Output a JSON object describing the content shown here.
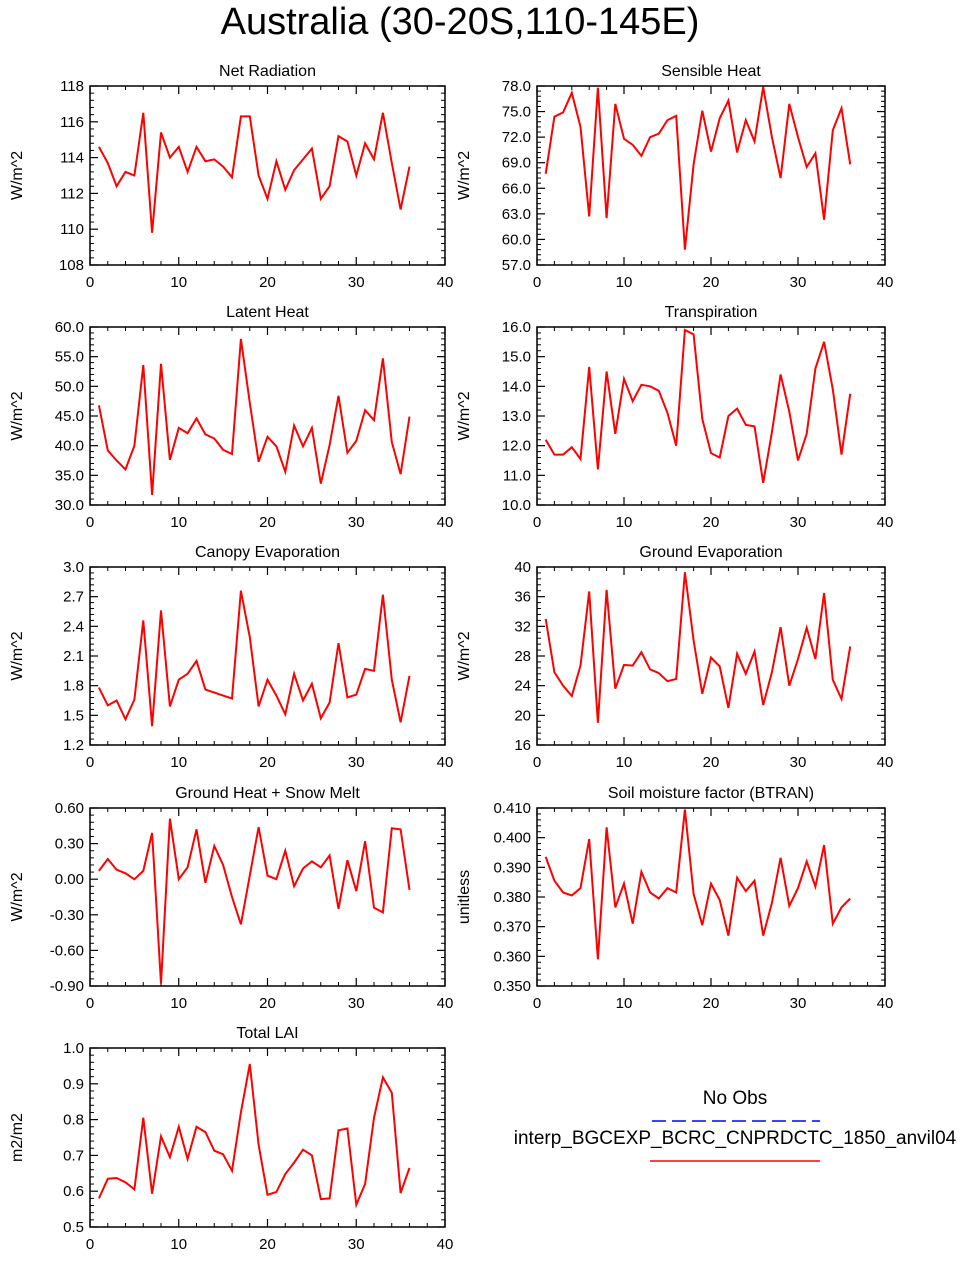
{
  "page": {
    "title": "Australia (30-20S,110-145E)"
  },
  "legend": {
    "obs_label": "No Obs",
    "obs_color": "#0000ff",
    "model_label": "interp_BGCEXP_BCRC_CNPRDCTC_1850_anvil04",
    "model_color": "#ff0000"
  },
  "chart_data": [
    {
      "type": "line",
      "title": "Net Radiation",
      "ylabel": "W/m^2",
      "xlim": [
        0,
        40
      ],
      "ylim": [
        108,
        118
      ],
      "xticks": [
        0,
        10,
        20,
        30,
        40
      ],
      "yticklabels": [
        "108",
        "110",
        "112",
        "114",
        "116",
        "118"
      ],
      "x": [
        1,
        2,
        3,
        4,
        5,
        6,
        7,
        8,
        9,
        10,
        11,
        12,
        13,
        14,
        15,
        16,
        17,
        18,
        19,
        20,
        21,
        22,
        23,
        24,
        25,
        26,
        27,
        28,
        29,
        30,
        31,
        32,
        33,
        34,
        35,
        36
      ],
      "series": [
        {
          "values": [
            114.6,
            113.7,
            112.4,
            113.2,
            113.0,
            116.5,
            109.8,
            115.4,
            114.0,
            114.6,
            113.2,
            114.6,
            113.8,
            113.9,
            113.5,
            112.9,
            116.3,
            116.3,
            113.0,
            111.7,
            113.8,
            112.2,
            113.3,
            113.9,
            114.5,
            111.7,
            112.4,
            115.2,
            114.9,
            113.0,
            114.8,
            113.9,
            116.5,
            113.7,
            111.1,
            113.5
          ]
        }
      ]
    },
    {
      "type": "line",
      "title": "Sensible Heat",
      "ylabel": "W/m^2",
      "xlim": [
        0,
        40
      ],
      "ylim": [
        57,
        78
      ],
      "xticks": [
        0,
        10,
        20,
        30,
        40
      ],
      "yticklabels": [
        "57.0",
        "60.0",
        "63.0",
        "66.0",
        "69.0",
        "72.0",
        "75.0",
        "78.0"
      ],
      "x": [
        1,
        2,
        3,
        4,
        5,
        6,
        7,
        8,
        9,
        10,
        11,
        12,
        13,
        14,
        15,
        16,
        17,
        18,
        19,
        20,
        21,
        22,
        23,
        24,
        25,
        26,
        27,
        28,
        29,
        30,
        31,
        32,
        33,
        34,
        35,
        36
      ],
      "series": [
        {
          "values": [
            67.7,
            74.4,
            74.9,
            77.2,
            73.2,
            62.7,
            77.8,
            62.5,
            75.9,
            71.8,
            71.1,
            69.8,
            72.0,
            72.4,
            74.0,
            74.5,
            58.8,
            68.8,
            75.1,
            70.3,
            74.2,
            76.3,
            70.2,
            74.0,
            71.5,
            77.9,
            72.0,
            67.2,
            75.9,
            72.0,
            68.5,
            70.1,
            62.3,
            72.8,
            75.4,
            68.8
          ]
        }
      ]
    },
    {
      "type": "line",
      "title": "Latent Heat",
      "ylabel": "W/m^2",
      "xlim": [
        0,
        40
      ],
      "ylim": [
        30,
        60
      ],
      "xticks": [
        0,
        10,
        20,
        30,
        40
      ],
      "yticklabels": [
        "30.0",
        "35.0",
        "40.0",
        "45.0",
        "50.0",
        "55.0",
        "60.0"
      ],
      "x": [
        1,
        2,
        3,
        4,
        5,
        6,
        7,
        8,
        9,
        10,
        11,
        12,
        13,
        14,
        15,
        16,
        17,
        18,
        19,
        20,
        21,
        22,
        23,
        24,
        25,
        26,
        27,
        28,
        29,
        30,
        31,
        32,
        33,
        34,
        35,
        36
      ],
      "series": [
        {
          "values": [
            46.8,
            39.2,
            37.5,
            36.0,
            40.0,
            53.6,
            31.7,
            53.8,
            37.6,
            43.0,
            42.1,
            44.6,
            41.9,
            41.2,
            39.3,
            38.6,
            58.0,
            47.2,
            37.3,
            41.5,
            39.9,
            35.6,
            43.4,
            39.9,
            43.0,
            33.6,
            40.1,
            48.4,
            38.8,
            40.8,
            46.0,
            44.3,
            54.7,
            40.6,
            35.2,
            44.9
          ]
        }
      ]
    },
    {
      "type": "line",
      "title": "Transpiration",
      "ylabel": "W/m^2",
      "xlim": [
        0,
        40
      ],
      "ylim": [
        10,
        16
      ],
      "xticks": [
        0,
        10,
        20,
        30,
        40
      ],
      "yticklabels": [
        "10.0",
        "11.0",
        "12.0",
        "13.0",
        "14.0",
        "15.0",
        "16.0"
      ],
      "x": [
        1,
        2,
        3,
        4,
        5,
        6,
        7,
        8,
        9,
        10,
        11,
        12,
        13,
        14,
        15,
        16,
        17,
        18,
        19,
        20,
        21,
        22,
        23,
        24,
        25,
        26,
        27,
        28,
        29,
        30,
        31,
        32,
        33,
        34,
        35,
        36
      ],
      "series": [
        {
          "values": [
            12.2,
            11.7,
            11.7,
            11.95,
            11.55,
            14.65,
            11.2,
            14.5,
            12.4,
            14.25,
            13.5,
            14.05,
            14.0,
            13.85,
            13.1,
            12.0,
            15.9,
            15.75,
            12.9,
            11.75,
            11.6,
            13.0,
            13.25,
            12.7,
            12.65,
            10.75,
            12.45,
            14.4,
            13.15,
            11.5,
            12.4,
            14.6,
            15.5,
            13.9,
            11.7,
            13.75
          ]
        }
      ]
    },
    {
      "type": "line",
      "title": "Canopy Evaporation",
      "ylabel": "W/m^2",
      "xlim": [
        0,
        40
      ],
      "ylim": [
        1.2,
        3.0
      ],
      "xticks": [
        0,
        10,
        20,
        30,
        40
      ],
      "yticklabels": [
        "1.2",
        "1.5",
        "1.8",
        "2.1",
        "2.4",
        "2.7",
        "3.0"
      ],
      "x": [
        1,
        2,
        3,
        4,
        5,
        6,
        7,
        8,
        9,
        10,
        11,
        12,
        13,
        14,
        15,
        16,
        17,
        18,
        19,
        20,
        21,
        22,
        23,
        24,
        25,
        26,
        27,
        28,
        29,
        30,
        31,
        32,
        33,
        34,
        35,
        36
      ],
      "series": [
        {
          "values": [
            1.78,
            1.6,
            1.65,
            1.46,
            1.66,
            2.46,
            1.39,
            2.56,
            1.59,
            1.86,
            1.92,
            2.05,
            1.76,
            1.73,
            1.7,
            1.67,
            2.76,
            2.29,
            1.59,
            1.86,
            1.7,
            1.51,
            1.92,
            1.65,
            1.82,
            1.47,
            1.63,
            2.23,
            1.68,
            1.71,
            1.97,
            1.95,
            2.72,
            1.86,
            1.43,
            1.9
          ]
        }
      ]
    },
    {
      "type": "line",
      "title": "Ground Evaporation",
      "ylabel": "W/m^2",
      "xlim": [
        0,
        40
      ],
      "ylim": [
        16,
        40
      ],
      "xticks": [
        0,
        10,
        20,
        30,
        40
      ],
      "yticklabels": [
        "16",
        "20",
        "24",
        "28",
        "32",
        "36",
        "40"
      ],
      "x": [
        1,
        2,
        3,
        4,
        5,
        6,
        7,
        8,
        9,
        10,
        11,
        12,
        13,
        14,
        15,
        16,
        17,
        18,
        19,
        20,
        21,
        22,
        23,
        24,
        25,
        26,
        27,
        28,
        29,
        30,
        31,
        32,
        33,
        34,
        35,
        36
      ],
      "series": [
        {
          "values": [
            33.0,
            25.8,
            24.0,
            22.6,
            26.7,
            36.7,
            19.0,
            36.9,
            23.6,
            26.8,
            26.7,
            28.5,
            26.2,
            25.7,
            24.6,
            24.9,
            39.3,
            30.1,
            22.9,
            27.8,
            26.6,
            21.0,
            28.3,
            25.6,
            28.6,
            21.4,
            25.8,
            31.9,
            24.0,
            27.6,
            31.8,
            27.6,
            36.5,
            24.8,
            22.2,
            29.3
          ]
        }
      ]
    },
    {
      "type": "line",
      "title": "Ground Heat + Snow Melt",
      "ylabel": "W/m^2",
      "xlim": [
        0,
        40
      ],
      "ylim": [
        -0.9,
        0.6
      ],
      "xticks": [
        0,
        10,
        20,
        30,
        40
      ],
      "yticklabels": [
        "-0.90",
        "-0.60",
        "-0.30",
        "0.00",
        "0.30",
        "0.60"
      ],
      "x": [
        1,
        2,
        3,
        4,
        5,
        6,
        7,
        8,
        9,
        10,
        11,
        12,
        13,
        14,
        15,
        16,
        17,
        18,
        19,
        20,
        21,
        22,
        23,
        24,
        25,
        26,
        27,
        28,
        29,
        30,
        31,
        32,
        33,
        34,
        35,
        36
      ],
      "series": [
        {
          "values": [
            0.07,
            0.17,
            0.08,
            0.05,
            0.0,
            0.07,
            0.39,
            -0.88,
            0.51,
            0.0,
            0.1,
            0.42,
            -0.03,
            0.28,
            0.12,
            -0.15,
            -0.38,
            0.03,
            0.44,
            0.03,
            0.0,
            0.24,
            -0.06,
            0.09,
            0.15,
            0.1,
            0.2,
            -0.25,
            0.16,
            -0.1,
            0.32,
            -0.24,
            -0.28,
            0.43,
            0.42,
            -0.09
          ]
        }
      ]
    },
    {
      "type": "line",
      "title": "Soil moisture factor (BTRAN)",
      "ylabel": "unitless",
      "xlim": [
        0,
        40
      ],
      "ylim": [
        0.35,
        0.41
      ],
      "xticks": [
        0,
        10,
        20,
        30,
        40
      ],
      "yticklabels": [
        "0.350",
        "0.360",
        "0.370",
        "0.380",
        "0.390",
        "0.400",
        "0.410"
      ],
      "x": [
        1,
        2,
        3,
        4,
        5,
        6,
        7,
        8,
        9,
        10,
        11,
        12,
        13,
        14,
        15,
        16,
        17,
        18,
        19,
        20,
        21,
        22,
        23,
        24,
        25,
        26,
        27,
        28,
        29,
        30,
        31,
        32,
        33,
        34,
        35,
        36
      ],
      "series": [
        {
          "values": [
            0.3935,
            0.3855,
            0.3815,
            0.3805,
            0.383,
            0.3995,
            0.359,
            0.4035,
            0.3765,
            0.3845,
            0.371,
            0.3885,
            0.3815,
            0.3795,
            0.383,
            0.3815,
            0.4095,
            0.381,
            0.3705,
            0.3845,
            0.379,
            0.367,
            0.3865,
            0.382,
            0.3855,
            0.367,
            0.378,
            0.3932,
            0.377,
            0.383,
            0.392,
            0.3835,
            0.3975,
            0.371,
            0.3765,
            0.3795
          ]
        }
      ]
    },
    {
      "type": "line",
      "title": "Total LAI",
      "ylabel": "m2/m2",
      "xlim": [
        0,
        40
      ],
      "ylim": [
        0.5,
        1.0
      ],
      "xticks": [
        0,
        10,
        20,
        30,
        40
      ],
      "yticklabels": [
        "0.5",
        "0.6",
        "0.7",
        "0.8",
        "0.9",
        "1.0"
      ],
      "x": [
        1,
        2,
        3,
        4,
        5,
        6,
        7,
        8,
        9,
        10,
        11,
        12,
        13,
        14,
        15,
        16,
        17,
        18,
        19,
        20,
        21,
        22,
        23,
        24,
        25,
        26,
        27,
        28,
        29,
        30,
        31,
        32,
        33,
        34,
        35,
        36
      ],
      "series": [
        {
          "values": [
            0.58,
            0.635,
            0.637,
            0.625,
            0.605,
            0.805,
            0.593,
            0.753,
            0.695,
            0.78,
            0.69,
            0.78,
            0.765,
            0.713,
            0.703,
            0.657,
            0.82,
            0.955,
            0.73,
            0.59,
            0.598,
            0.648,
            0.68,
            0.716,
            0.7,
            0.578,
            0.58,
            0.77,
            0.775,
            0.562,
            0.62,
            0.805,
            0.918,
            0.875,
            0.595,
            0.665
          ]
        }
      ]
    }
  ]
}
